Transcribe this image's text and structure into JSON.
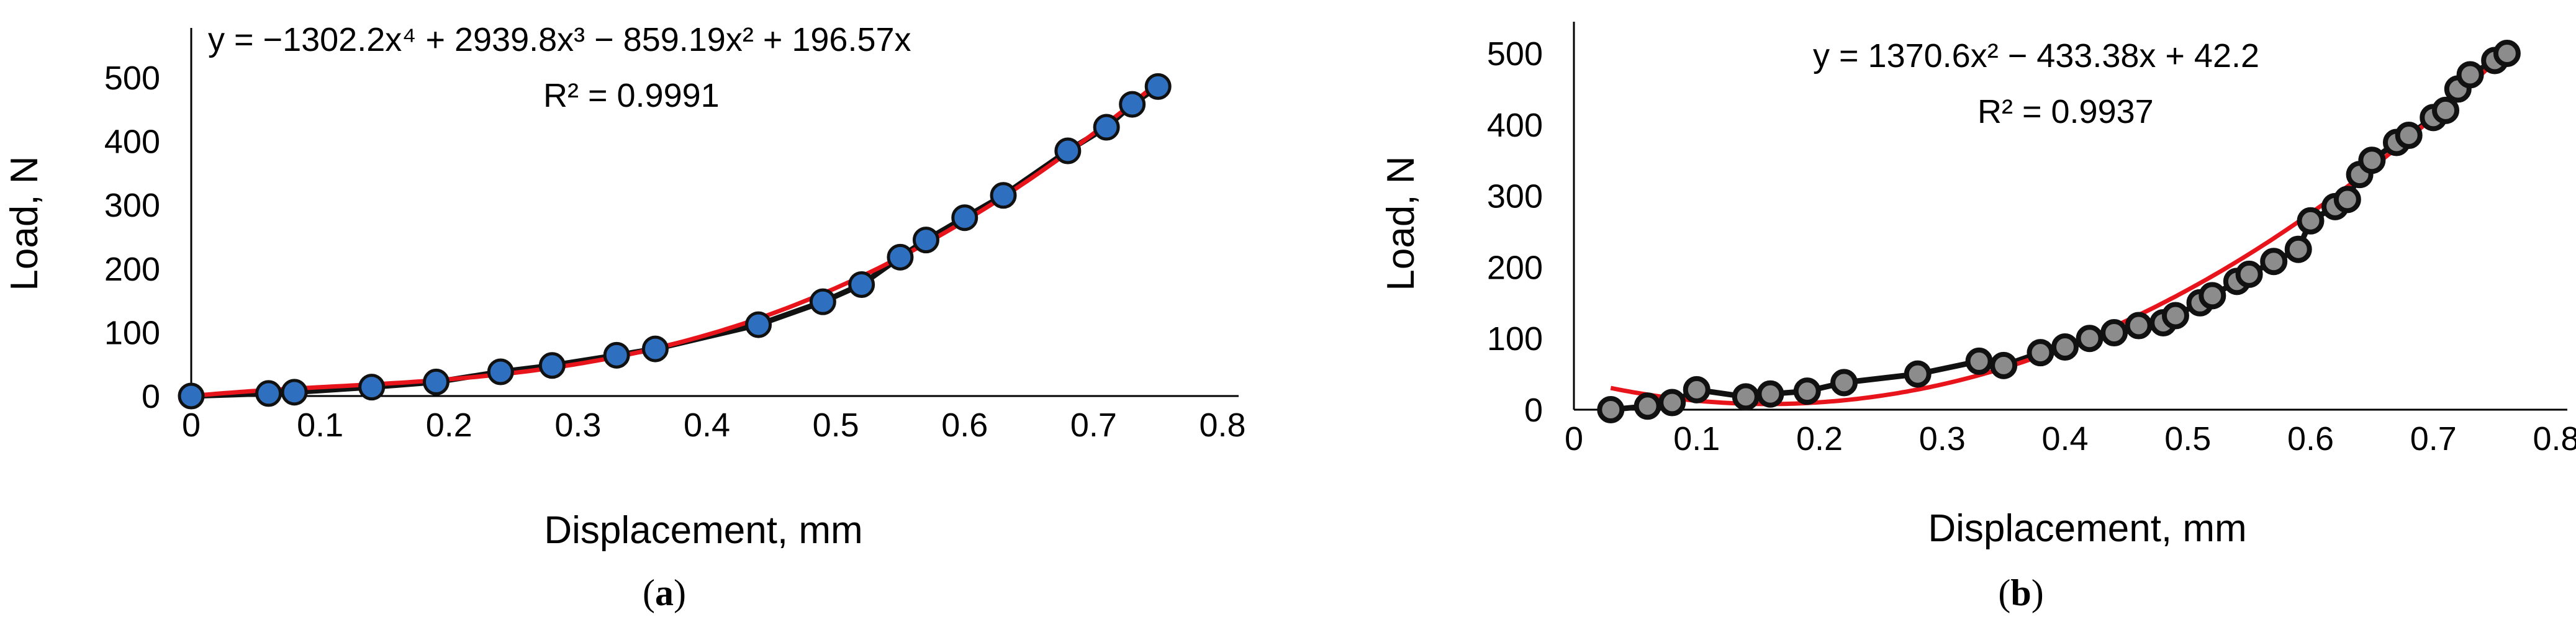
{
  "chart_data": [
    {
      "type": "scatter",
      "panel": "a",
      "caption_letter": "a",
      "xlabel": "Displacement, mm",
      "ylabel": "Load, N",
      "xlim": [
        0,
        0.8
      ],
      "ylim": [
        0,
        500
      ],
      "xticks": [
        0,
        0.1,
        0.2,
        0.3,
        0.4,
        0.5,
        0.6,
        0.7,
        0.8
      ],
      "xtick_labels": [
        "0",
        "0.1",
        "0.2",
        "0.3",
        "0.4",
        "0.5",
        "0.6",
        "0.7",
        "0.8"
      ],
      "yticks": [
        0,
        100,
        200,
        300,
        400,
        500
      ],
      "ytick_labels": [
        "0",
        "100",
        "200",
        "300",
        "400",
        "500"
      ],
      "grid": false,
      "trendline": {
        "equation": "y = −1302.2x⁴ + 2939.8x³ − 859.19x² + 196.57x",
        "r2": "R² = 0.9991",
        "coefficients": [
          196.57,
          -859.19,
          2939.8,
          -1302.2
        ],
        "intercept": 0,
        "color": "#e8141b"
      },
      "series": [
        {
          "marker_fill": "#2f6fc0",
          "marker_edge": "#111111",
          "line_color": "#111111",
          "x": [
            0,
            0.06,
            0.08,
            0.14,
            0.19,
            0.24,
            0.28,
            0.33,
            0.36,
            0.44,
            0.49,
            0.52,
            0.55,
            0.57,
            0.6,
            0.63,
            0.68,
            0.71,
            0.73,
            0.75
          ],
          "y": [
            0,
            4,
            6,
            14,
            22,
            38,
            48,
            64,
            74,
            112,
            148,
            175,
            218,
            245,
            280,
            315,
            385,
            422,
            458,
            486
          ]
        }
      ]
    },
    {
      "type": "scatter",
      "panel": "b",
      "caption_letter": "b",
      "xlabel": "Displacement, mm",
      "ylabel": "Load, N",
      "xlim": [
        0,
        0.8
      ],
      "ylim": [
        0,
        500
      ],
      "xticks": [
        0,
        0.1,
        0.2,
        0.3,
        0.4,
        0.5,
        0.6,
        0.7,
        0.8
      ],
      "xtick_labels": [
        "0",
        "0.1",
        "0.2",
        "0.3",
        "0.4",
        "0.5",
        "0.6",
        "0.7",
        "0.8"
      ],
      "yticks": [
        0,
        100,
        200,
        300,
        400,
        500
      ],
      "ytick_labels": [
        "0",
        "100",
        "200",
        "300",
        "400",
        "500"
      ],
      "grid": false,
      "trendline": {
        "equation": "y = 1370.6x² − 433.38x + 42.2",
        "r2": "R² = 0.9937",
        "coefficients": [
          -433.38,
          1370.6
        ],
        "intercept": 42.2,
        "color": "#e8141b"
      },
      "series": [
        {
          "marker_fill": "#8c8c8c",
          "marker_edge": "#111111",
          "line_color": "#111111",
          "x": [
            0.03,
            0.06,
            0.08,
            0.1,
            0.14,
            0.16,
            0.19,
            0.22,
            0.28,
            0.33,
            0.35,
            0.38,
            0.4,
            0.42,
            0.44,
            0.46,
            0.48,
            0.49,
            0.51,
            0.52,
            0.54,
            0.55,
            0.57,
            0.59,
            0.6,
            0.62,
            0.63,
            0.64,
            0.65,
            0.67,
            0.68,
            0.7,
            0.71,
            0.72,
            0.73,
            0.75,
            0.76
          ],
          "y": [
            0,
            5,
            10,
            28,
            18,
            22,
            26,
            38,
            50,
            68,
            62,
            80,
            88,
            100,
            108,
            118,
            122,
            132,
            150,
            160,
            180,
            190,
            208,
            225,
            265,
            285,
            295,
            330,
            350,
            375,
            385,
            410,
            420,
            450,
            470,
            490,
            500
          ]
        }
      ]
    }
  ]
}
